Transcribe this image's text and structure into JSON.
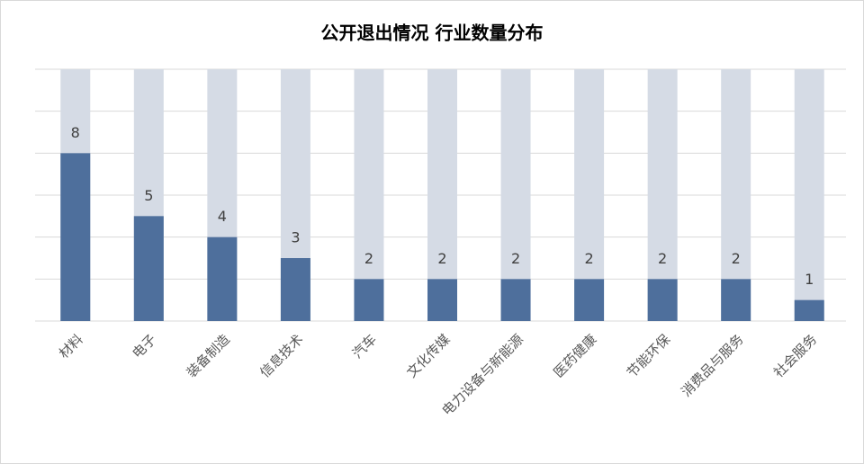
{
  "chart_data": {
    "type": "bar",
    "title": "公开退出情况 行业数量分布",
    "categories": [
      "材料",
      "电子",
      "装备制造",
      "信息技术",
      "汽车",
      "文化传媒",
      "电力设备与新能源",
      "医药健康",
      "节能环保",
      "消费品与服务",
      "社会服务"
    ],
    "values": [
      8,
      5,
      4,
      3,
      2,
      2,
      2,
      2,
      2,
      2,
      1
    ],
    "color": "#4e6f9c",
    "background_color": "#d5dbe5",
    "ylim": [
      0,
      12
    ],
    "yticks": [
      0,
      2,
      4,
      6,
      8,
      10,
      12
    ],
    "grid": true
  }
}
